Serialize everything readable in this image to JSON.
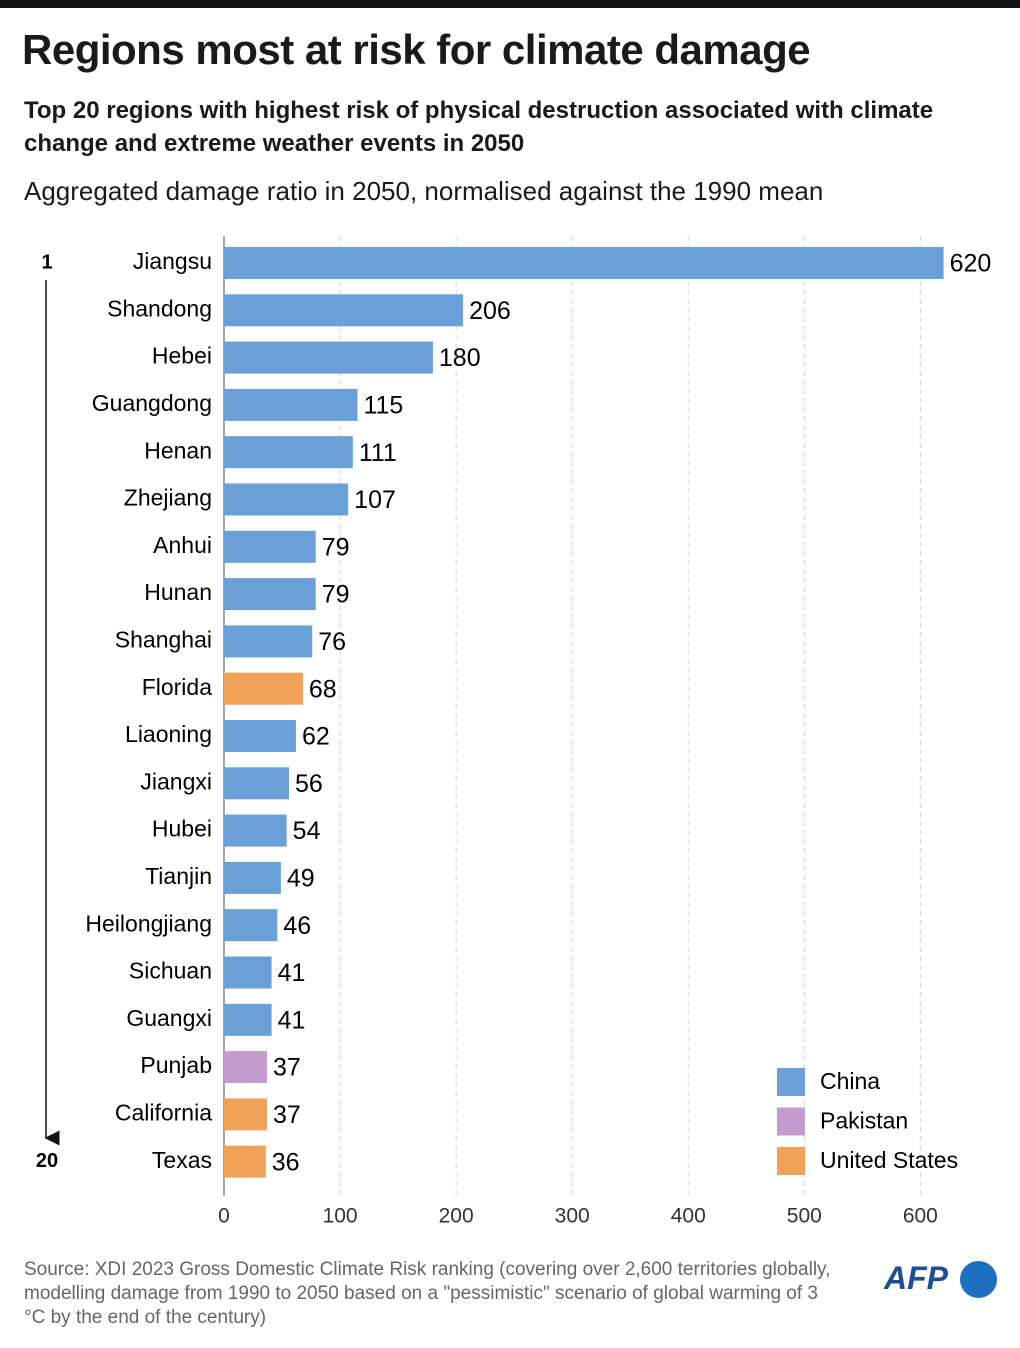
{
  "chart_data": {
    "type": "bar",
    "title": "Regions most at risk for climate damage",
    "subtitle": "Top 20 regions with highest risk of physical destruction associated with climate change and extreme weather events in 2050",
    "x_label": "Aggregated damage ratio in 2050, normalised against the 1990 mean",
    "categories": [
      "Jiangsu",
      "Shandong",
      "Hebei",
      "Guangdong",
      "Henan",
      "Zhejiang",
      "Anhui",
      "Hunan",
      "Shanghai",
      "Florida",
      "Liaoning",
      "Jiangxi",
      "Hubei",
      "Tianjin",
      "Heilongjiang",
      "Sichuan",
      "Guangxi",
      "Punjab",
      "California",
      "Texas"
    ],
    "series": [
      {
        "name": "China",
        "color": "#6a9fd8",
        "values": [
          620,
          206,
          180,
          115,
          111,
          107,
          79,
          79,
          76,
          null,
          62,
          56,
          54,
          49,
          46,
          41,
          41,
          null,
          null,
          null
        ]
      },
      {
        "name": "Pakistan",
        "color": "#c39bcf",
        "values": [
          null,
          null,
          null,
          null,
          null,
          null,
          null,
          null,
          null,
          null,
          null,
          null,
          null,
          null,
          null,
          null,
          null,
          37,
          null,
          null
        ]
      },
      {
        "name": "United States",
        "color": "#f0a258",
        "values": [
          null,
          null,
          null,
          null,
          null,
          null,
          null,
          null,
          null,
          68,
          null,
          null,
          null,
          null,
          null,
          null,
          null,
          null,
          37,
          36
        ]
      }
    ],
    "orientation": "horizontal",
    "xlim": [
      0,
      660
    ],
    "xticks": [
      0,
      100,
      200,
      300,
      400,
      500,
      600
    ],
    "grid": true,
    "legend": "bottom-right",
    "rank_labels": [
      1,
      20
    ],
    "source": "Source: XDI 2023 Gross Domestic Climate Risk ranking (covering over 2,600 territories globally, modelling damage from 1990 to 2050 based on a \"pessimistic\" scenario of global warming of 3 °C  by the end of the century)",
    "logo": "AFP"
  }
}
